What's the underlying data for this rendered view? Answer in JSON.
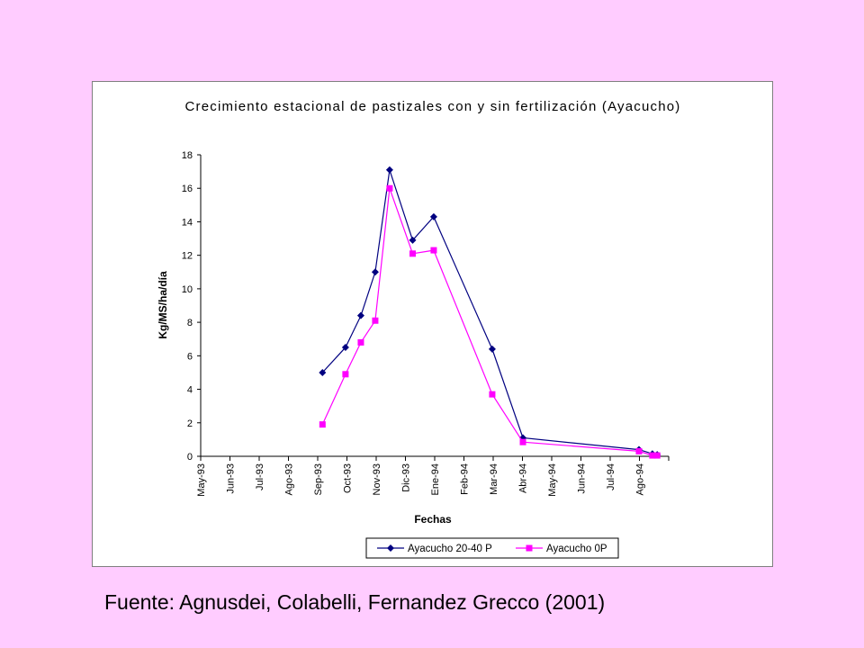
{
  "caption": "Fuente: Agnusdei, Colabelli, Fernandez Grecco (2001)",
  "colors": {
    "background": "#ffccff",
    "series1": "#000080",
    "series2": "#ff00ff"
  },
  "chart_data": {
    "type": "line",
    "title": "Crecimiento estacional de pastizales con y sin fertilización (Ayacucho)",
    "xlabel": "Fechas",
    "ylabel": "Kg/MS/ha/día",
    "ylim": [
      0,
      18
    ],
    "yticks": [
      0,
      2,
      4,
      6,
      8,
      10,
      12,
      14,
      16,
      18
    ],
    "xlim": [
      "1993-05-01",
      "1994-09-01"
    ],
    "xtick_labels": [
      "May-93",
      "Jun-93",
      "Jul-93",
      "Ago-93",
      "Sep-93",
      "Oct-93",
      "Nov-93",
      "Dic-93",
      "Ene-94",
      "Feb-94",
      "Mar-94",
      "Abr-94",
      "May-94",
      "Jun-94",
      "Jul-94",
      "Ago-94"
    ],
    "grid": false,
    "legend_position": "bottom",
    "series": [
      {
        "name": "Ayacucho 20-40 P",
        "marker": "diamond",
        "color": "#000080",
        "points": [
          {
            "x": "1993-09-05",
            "y": 5.0
          },
          {
            "x": "1993-09-29",
            "y": 6.5
          },
          {
            "x": "1993-10-15",
            "y": 8.4
          },
          {
            "x": "1993-10-30",
            "y": 11.0
          },
          {
            "x": "1993-11-14",
            "y": 17.1
          },
          {
            "x": "1993-12-08",
            "y": 12.9
          },
          {
            "x": "1993-12-30",
            "y": 14.3
          },
          {
            "x": "1994-03-01",
            "y": 6.4
          },
          {
            "x": "1994-04-02",
            "y": 1.1
          },
          {
            "x": "1994-08-01",
            "y": 0.4
          },
          {
            "x": "1994-08-15",
            "y": 0.15
          },
          {
            "x": "1994-08-20",
            "y": 0.1
          }
        ]
      },
      {
        "name": "Ayacucho 0P",
        "marker": "square",
        "color": "#ff00ff",
        "points": [
          {
            "x": "1993-09-05",
            "y": 1.9
          },
          {
            "x": "1993-09-29",
            "y": 4.9
          },
          {
            "x": "1993-10-15",
            "y": 6.8
          },
          {
            "x": "1993-10-30",
            "y": 8.1
          },
          {
            "x": "1993-11-14",
            "y": 16.0
          },
          {
            "x": "1993-12-08",
            "y": 12.1
          },
          {
            "x": "1993-12-30",
            "y": 12.3
          },
          {
            "x": "1994-03-01",
            "y": 3.7
          },
          {
            "x": "1994-04-02",
            "y": 0.85
          },
          {
            "x": "1994-08-01",
            "y": 0.3
          },
          {
            "x": "1994-08-15",
            "y": 0.05
          },
          {
            "x": "1994-08-20",
            "y": 0.05
          }
        ]
      }
    ]
  }
}
